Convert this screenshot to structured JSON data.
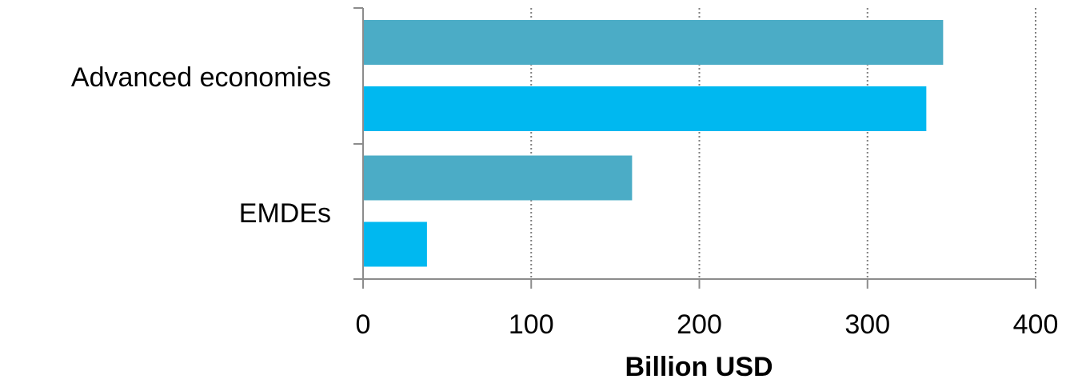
{
  "chart_data": {
    "type": "bar",
    "orientation": "horizontal",
    "categories": [
      "Advanced economies",
      "EMDEs"
    ],
    "series": [
      {
        "values": [
          345,
          160
        ],
        "color": "#4bacc6"
      },
      {
        "values": [
          335,
          38
        ],
        "color": "#00b8f0"
      }
    ],
    "x_ticks": [
      "0",
      "100",
      "200",
      "300",
      "400"
    ],
    "xlabel": "Billion USD",
    "xlim": [
      0,
      400
    ],
    "grid": "vertical dotted",
    "legend": "none"
  }
}
